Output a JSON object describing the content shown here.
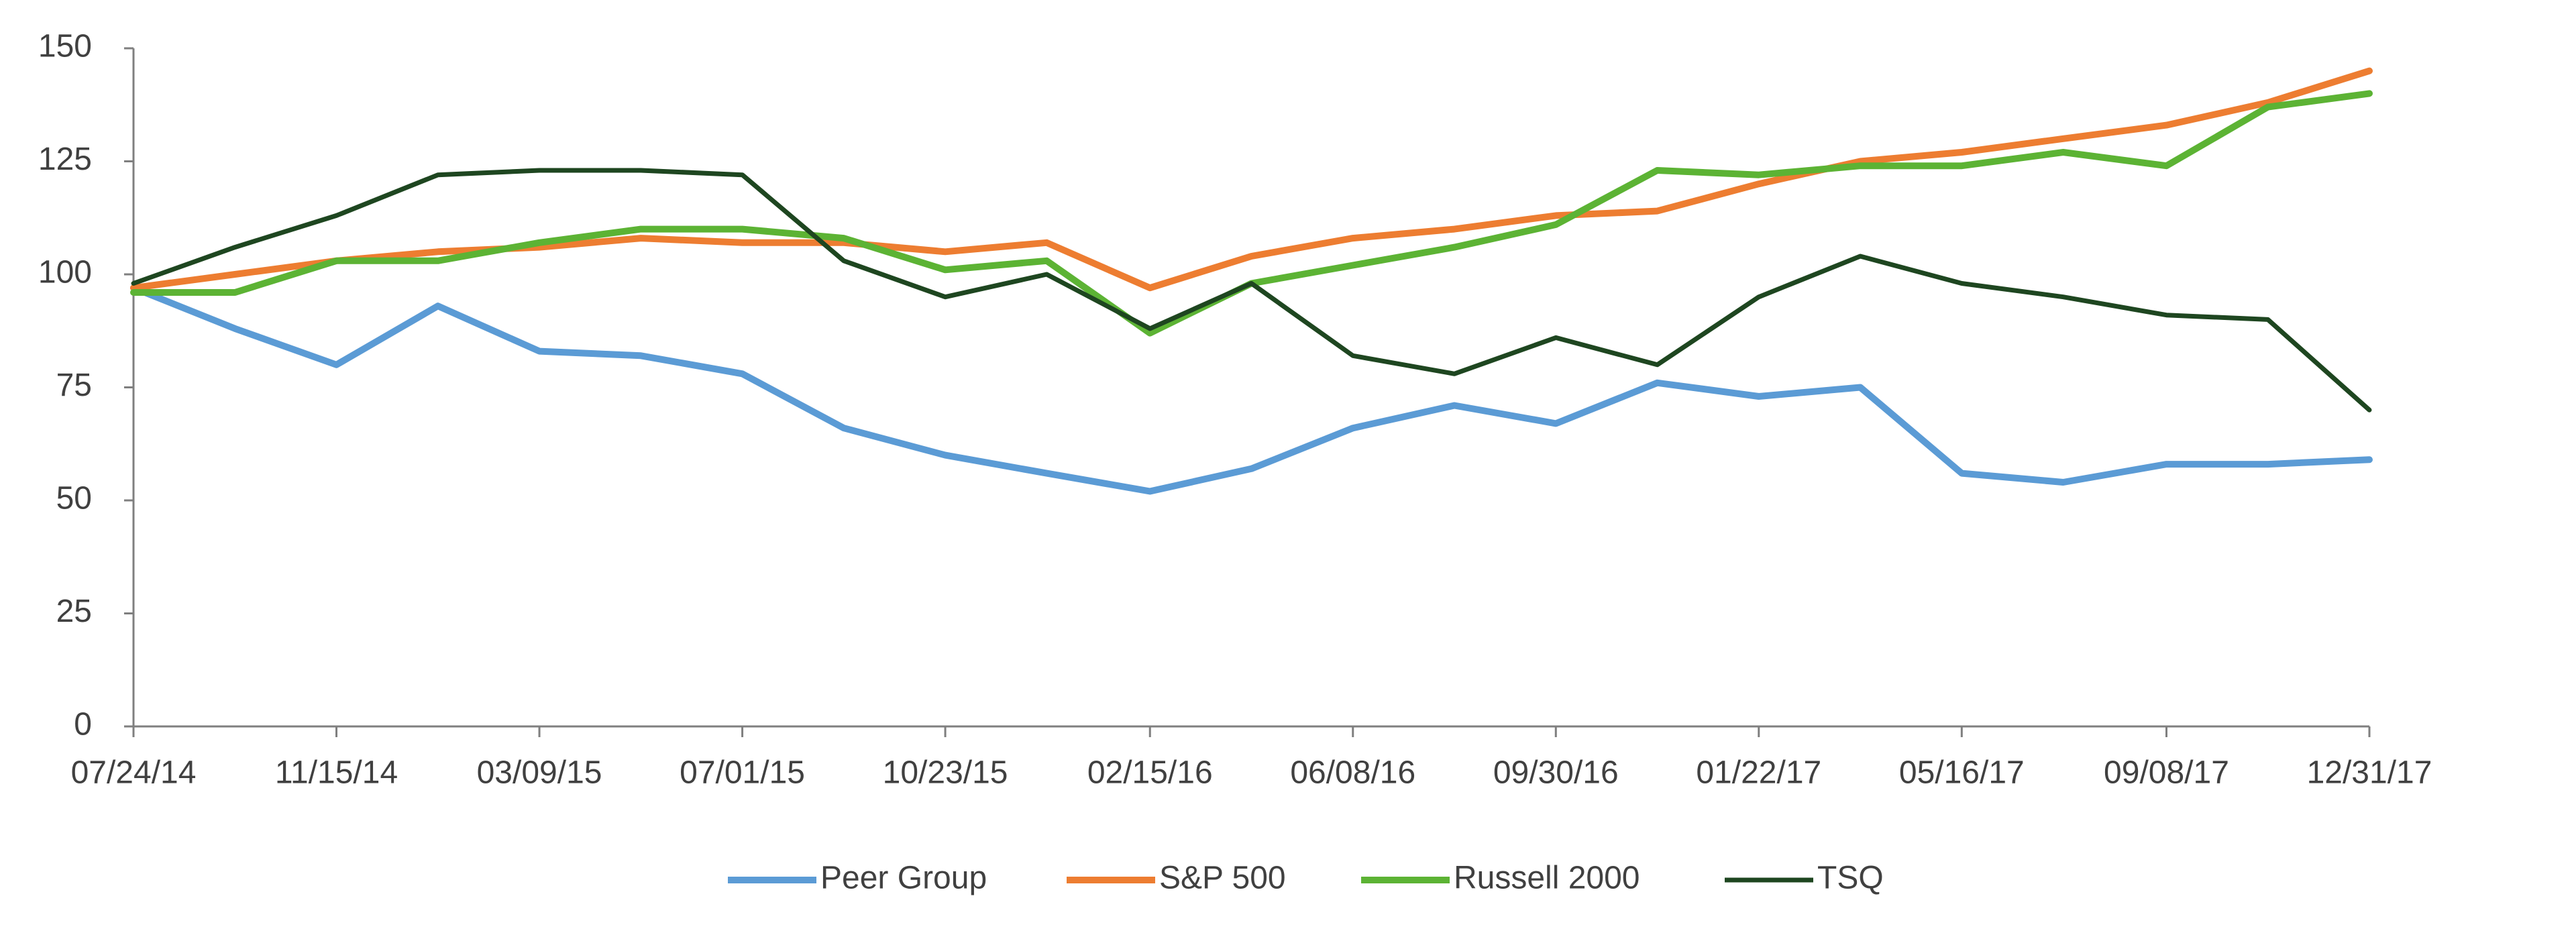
{
  "chart_data": {
    "type": "line",
    "x": [
      "07/24/14",
      "09/19/14",
      "11/15/14",
      "01/11/15",
      "03/09/15",
      "05/05/15",
      "07/01/15",
      "08/27/15",
      "10/23/15",
      "12/19/15",
      "02/15/16",
      "04/12/16",
      "06/08/16",
      "08/04/16",
      "09/30/16",
      "11/26/16",
      "01/22/17",
      "03/20/17",
      "05/16/17",
      "07/12/17",
      "09/08/17",
      "11/04/17",
      "12/31/17"
    ],
    "series": [
      {
        "name": "Peer Group",
        "color": "#5b9bd5",
        "values": [
          97,
          88,
          80,
          93,
          83,
          82,
          78,
          66,
          60,
          56,
          52,
          57,
          66,
          71,
          67,
          76,
          73,
          75,
          56,
          54,
          58,
          58,
          59
        ]
      },
      {
        "name": "S&P 500",
        "color": "#ed7d31",
        "values": [
          97,
          100,
          103,
          105,
          106,
          108,
          107,
          107,
          105,
          107,
          97,
          104,
          108,
          110,
          113,
          114,
          120,
          125,
          127,
          130,
          133,
          138,
          145
        ]
      },
      {
        "name": "Russell 2000",
        "color": "#5cb334",
        "values": [
          96,
          96,
          103,
          103,
          107,
          110,
          110,
          108,
          101,
          103,
          87,
          98,
          102,
          106,
          111,
          123,
          122,
          124,
          124,
          127,
          124,
          137,
          140
        ]
      },
      {
        "name": "TSQ",
        "color": "#1e4620",
        "values": [
          98,
          106,
          113,
          122,
          123,
          123,
          122,
          103,
          95,
          100,
          88,
          98,
          82,
          78,
          86,
          80,
          95,
          104,
          98,
          95,
          91,
          90,
          70
        ]
      }
    ],
    "xlim": [
      "07/24/14",
      "12/31/17"
    ],
    "xticks": [
      "07/24/14",
      "11/15/14",
      "03/09/15",
      "07/01/15",
      "10/23/15",
      "02/15/16",
      "06/08/16",
      "09/30/16",
      "01/22/17",
      "05/16/17",
      "09/08/17",
      "12/31/17"
    ],
    "ylim": [
      0,
      150
    ],
    "yticks": [
      0,
      25,
      50,
      75,
      100,
      125,
      150
    ],
    "grid": false,
    "legend": "bottom"
  }
}
